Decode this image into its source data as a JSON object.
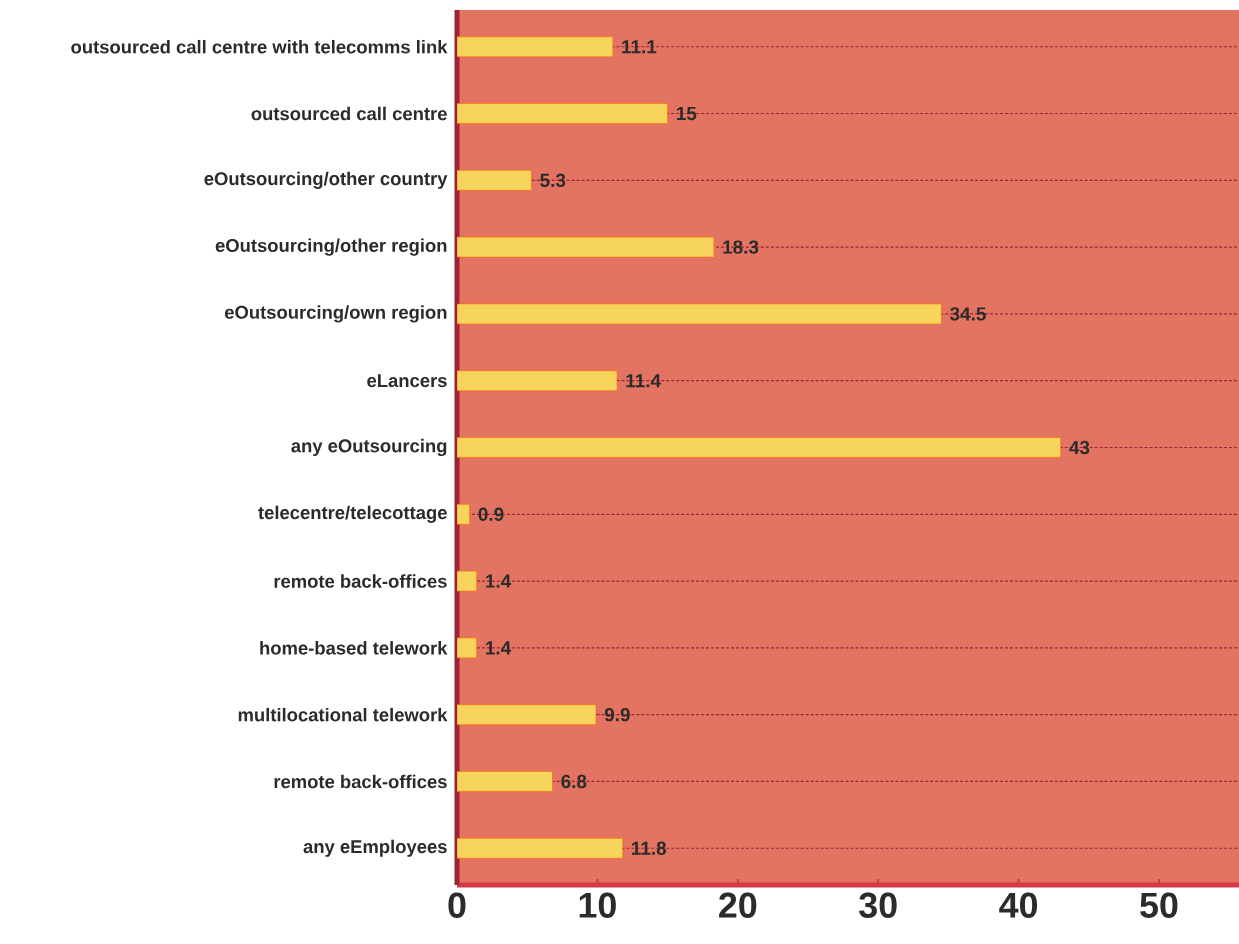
{
  "chart_data": {
    "type": "bar",
    "orientation": "horizontal",
    "categories": [
      "outsourced call centre with telecomms link",
      "outsourced call centre",
      "eOutsourcing/other country",
      "eOutsourcing/other region",
      "eOutsourcing/own region",
      "eLancers",
      "any eOutsourcing",
      "telecentre/telecottage",
      "remote back-offices",
      "home-based telework",
      "multilocational telework",
      "remote back-offices",
      "any eEmployees"
    ],
    "values": [
      11.1,
      15,
      5.3,
      18.3,
      34.5,
      11.4,
      43,
      0.9,
      1.4,
      1.4,
      9.9,
      6.8,
      11.8
    ],
    "color": "#f7d45c",
    "xlim": [
      0,
      55.7
    ],
    "xticks": [
      0,
      10,
      20,
      30,
      40,
      50
    ],
    "grid": "y",
    "data_labels": true
  }
}
